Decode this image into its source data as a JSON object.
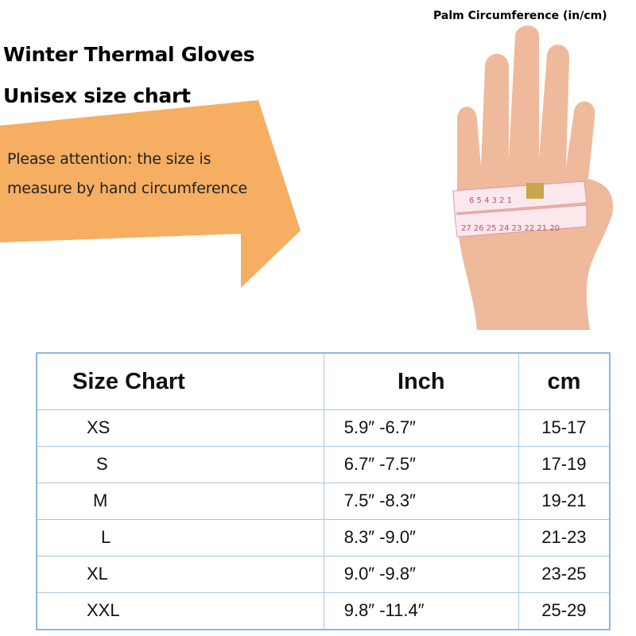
{
  "header": {
    "title": "Winter Thermal Gloves",
    "subtitle": "Unisex size chart"
  },
  "note": {
    "line1": "Please attention: the size is",
    "line2": "measure by hand circumference"
  },
  "image": {
    "label": "Palm Circumference (in/cm)",
    "tape_numbers": [
      "1",
      "2",
      "3",
      "4",
      "5",
      "6",
      "20",
      "21",
      "22",
      "23",
      "24",
      "25",
      "26",
      "27"
    ]
  },
  "colors": {
    "arrow": "#f5ae62",
    "table_border": "#8fb6de",
    "skin": "#efb99c",
    "tape": "#fbe8ec"
  },
  "table": {
    "headers": [
      "Size Chart",
      "Inch",
      "cm"
    ],
    "rows": [
      [
        "XS",
        "5.9″  -6.7″",
        "15-17"
      ],
      [
        "S",
        "6.7″  -7.5″",
        "17-19"
      ],
      [
        "M",
        "7.5″  -8.3″",
        "19-21"
      ],
      [
        "L",
        "8.3″  -9.0″",
        "21-23"
      ],
      [
        "XL",
        "9.0″  -9.8″",
        "23-25"
      ],
      [
        "XXL",
        "9.8″  -11.4″",
        "25-29"
      ]
    ]
  }
}
